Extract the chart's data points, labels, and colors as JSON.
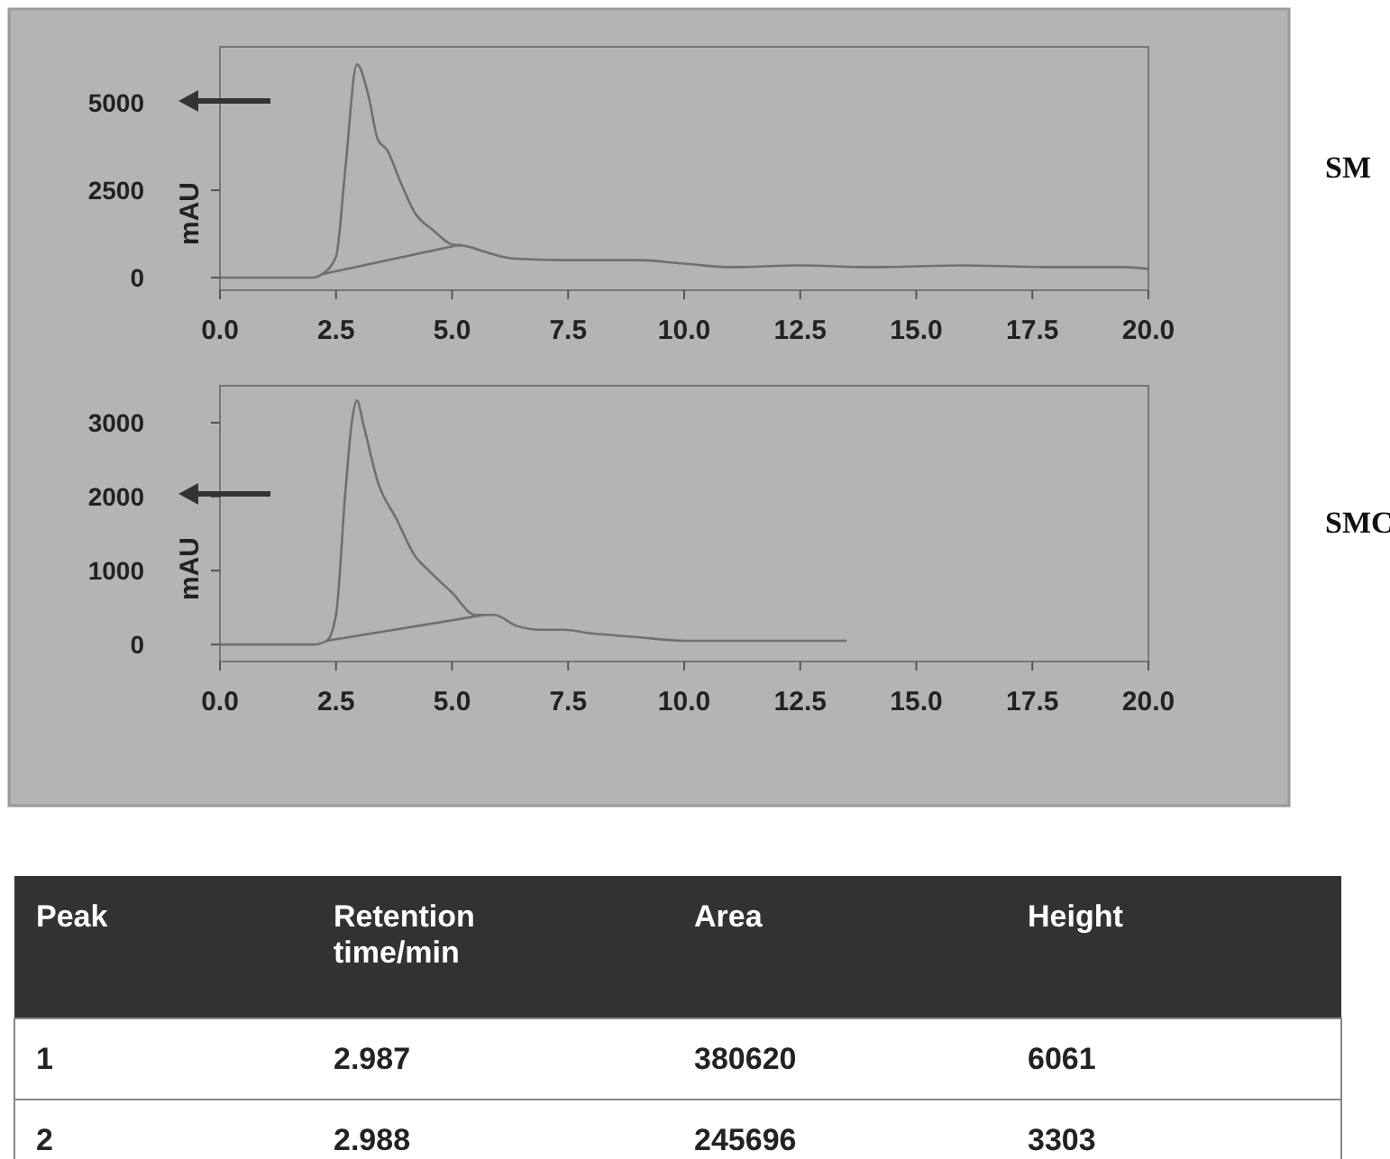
{
  "chart_data": [
    {
      "type": "line",
      "annotations": [
        "SM"
      ],
      "ylabel": "mAU",
      "xlim": [
        0,
        20
      ],
      "ylim": [
        -360,
        6600
      ],
      "xticks": [
        {
          "value": 0,
          "label": "0.0"
        },
        {
          "value": 2.5,
          "label": "2.5"
        },
        {
          "value": 5,
          "label": "5.0"
        },
        {
          "value": 7.5,
          "label": "7.5"
        },
        {
          "value": 10,
          "label": "10.0"
        },
        {
          "value": 12.5,
          "label": "12.5"
        },
        {
          "value": 15,
          "label": "15.0"
        },
        {
          "value": 17.5,
          "label": "17.5"
        },
        {
          "value": 20,
          "label": "20.0"
        }
      ],
      "yticks": [
        0,
        2500,
        5000
      ],
      "grid": false,
      "series": [
        {
          "color": "#707070",
          "x": [
            0,
            2.0,
            2.2,
            2.5,
            2.7,
            2.95,
            3.2,
            3.4,
            3.6,
            3.9,
            4.2,
            4.6,
            5.0,
            5.3,
            5.8,
            6.3,
            7.5,
            9.0,
            10.0,
            11.0,
            12.5,
            14.0,
            16.0,
            18.0,
            19.5,
            20.0
          ],
          "values": [
            0,
            0,
            100,
            600,
            3100,
            6100,
            5200,
            3950,
            3650,
            2700,
            1850,
            1350,
            950,
            900,
            700,
            550,
            500,
            500,
            400,
            300,
            350,
            300,
            350,
            300,
            300,
            250
          ]
        },
        {
          "color": "#707070",
          "x": [
            2.2,
            5.2
          ],
          "values": [
            100,
            950
          ]
        }
      ]
    },
    {
      "type": "line",
      "annotations": [
        "SMC"
      ],
      "ylabel": "mAU",
      "xlim": [
        0,
        20
      ],
      "ylim": [
        -230,
        3500
      ],
      "xticks": [
        {
          "value": 0,
          "label": "0.0"
        },
        {
          "value": 2.5,
          "label": "2.5"
        },
        {
          "value": 5,
          "label": "5.0"
        },
        {
          "value": 7.5,
          "label": "7.5"
        },
        {
          "value": 10,
          "label": "10.0"
        },
        {
          "value": 12.5,
          "label": "12.5"
        },
        {
          "value": 15,
          "label": "15.0"
        },
        {
          "value": 17.5,
          "label": "17.5"
        },
        {
          "value": 20,
          "label": "20.0"
        }
      ],
      "yticks": [
        0,
        1000,
        2000,
        3000
      ],
      "grid": false,
      "series": [
        {
          "color": "#707070",
          "x": [
            0,
            2.0,
            2.3,
            2.5,
            2.7,
            2.85,
            2.95,
            3.1,
            3.4,
            3.8,
            4.2,
            4.5,
            5.0,
            5.5,
            5.9,
            6.4,
            6.9,
            7.4,
            8.0,
            9.0,
            10.0,
            11.5,
            12.5,
            13.5
          ],
          "values": [
            0,
            0,
            50,
            400,
            2050,
            3050,
            3300,
            2950,
            2200,
            1700,
            1200,
            1000,
            700,
            400,
            400,
            250,
            200,
            200,
            150,
            100,
            50,
            50,
            50,
            50
          ]
        },
        {
          "color": "#707070",
          "x": [
            2.3,
            5.7
          ],
          "values": [
            50,
            400
          ]
        }
      ]
    },
    {
      "type": "other",
      "annotations": [
        "Peak",
        "Retention time/min",
        "Area",
        "Height",
        "1",
        "2.987",
        "380620",
        "6061",
        "2",
        "2.988",
        "245696",
        "3303"
      ]
    }
  ]
}
